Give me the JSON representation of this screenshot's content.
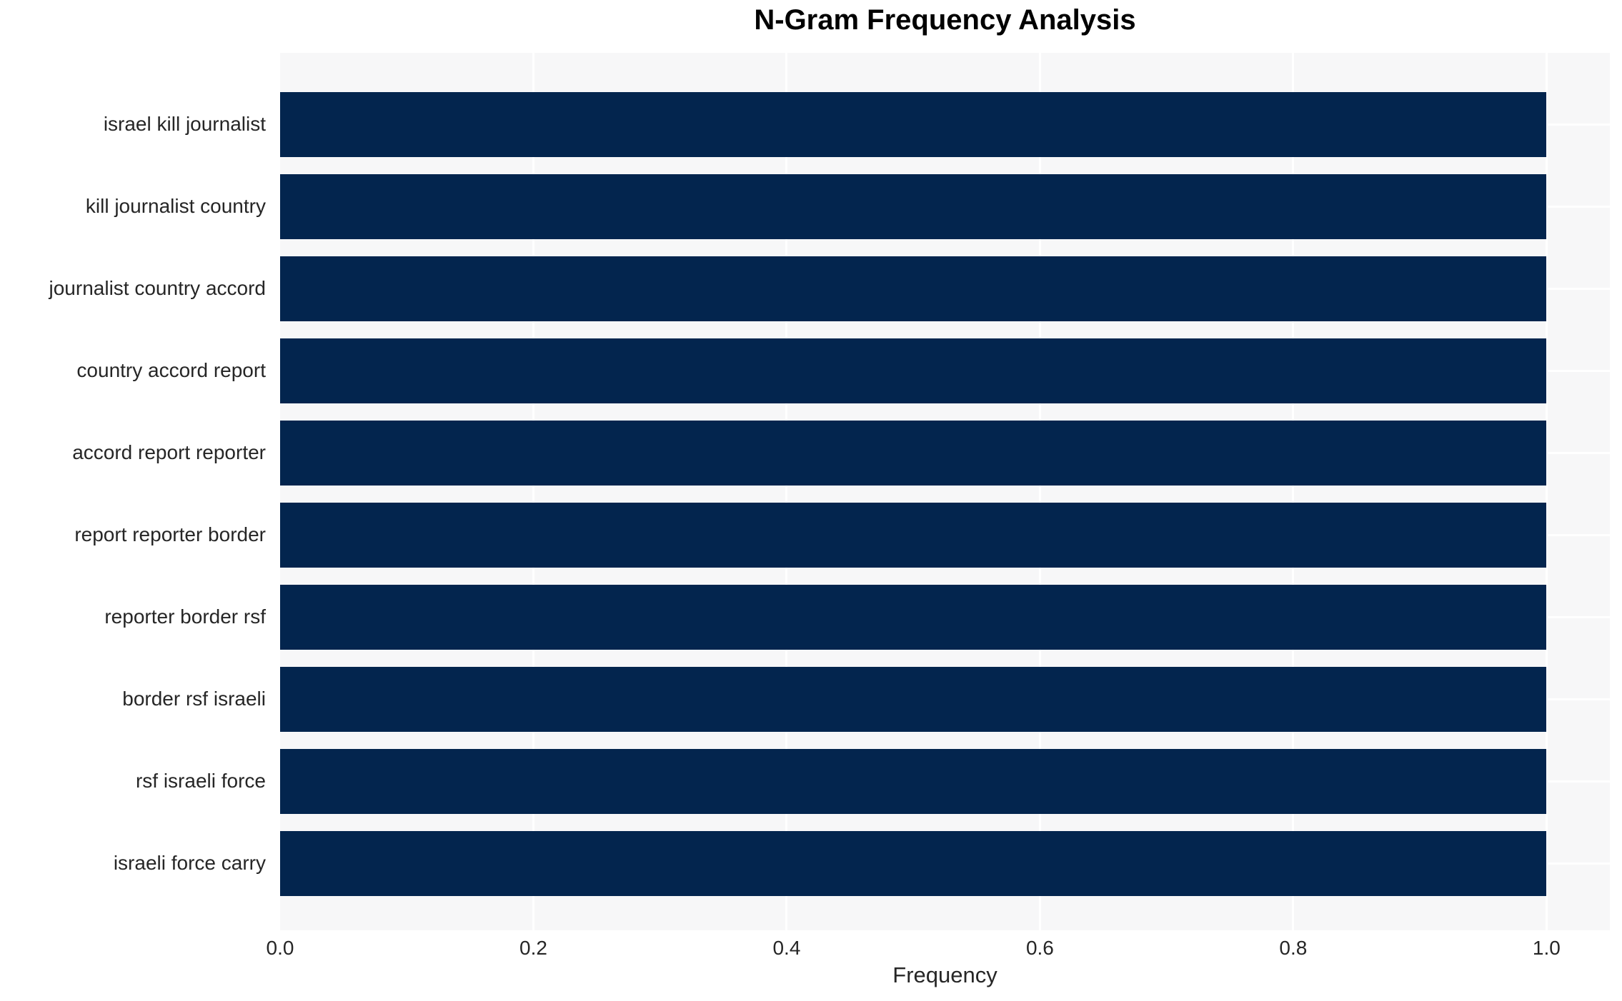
{
  "chart_data": {
    "type": "bar",
    "orientation": "horizontal",
    "title": "N-Gram Frequency Analysis",
    "xlabel": "Frequency",
    "ylabel": "",
    "categories": [
      "israel kill journalist",
      "kill journalist country",
      "journalist country accord",
      "country accord report",
      "accord report reporter",
      "report reporter border",
      "reporter border rsf",
      "border rsf israeli",
      "rsf israeli force",
      "israeli force carry"
    ],
    "values": [
      1.0,
      1.0,
      1.0,
      1.0,
      1.0,
      1.0,
      1.0,
      1.0,
      1.0,
      1.0
    ],
    "xlim": [
      0.0,
      1.05
    ],
    "xticks": [
      {
        "value": 0.0,
        "label": "0.0"
      },
      {
        "value": 0.2,
        "label": "0.2"
      },
      {
        "value": 0.4,
        "label": "0.4"
      },
      {
        "value": 0.6,
        "label": "0.6"
      },
      {
        "value": 0.8,
        "label": "0.8"
      },
      {
        "value": 1.0,
        "label": "1.0"
      }
    ],
    "grid": true,
    "legend": false,
    "colors": {
      "bar": "#03254e",
      "plot_background": "#f7f7f8",
      "gridline": "#ffffff",
      "tick_text": "#262626",
      "title_text": "#000000"
    }
  }
}
